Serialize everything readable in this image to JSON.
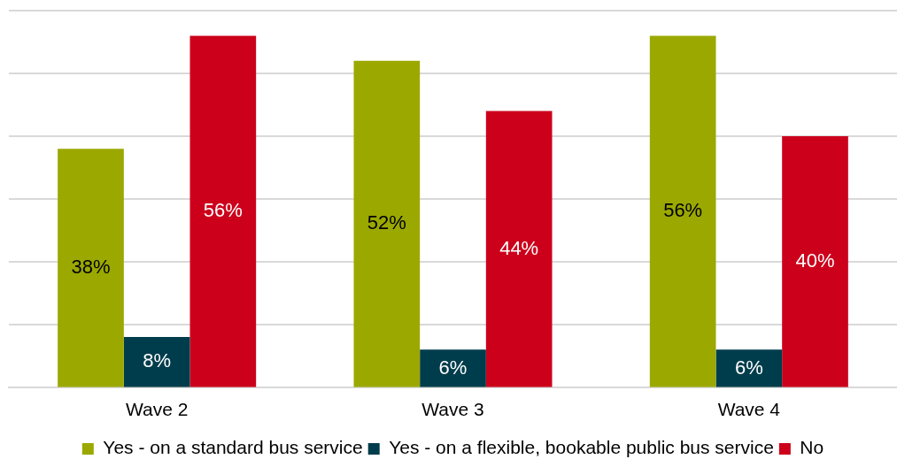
{
  "chart_data": {
    "type": "bar",
    "categories": [
      "Wave 2",
      "Wave 3",
      "Wave 4"
    ],
    "series": [
      {
        "name": "Yes - on a standard bus service",
        "color": "#9ba800",
        "values": [
          38,
          52,
          56
        ],
        "value_labels": [
          "38%",
          "52%",
          "56%"
        ]
      },
      {
        "name": "Yes - on a flexible, bookable public bus service",
        "color": "#003d4c",
        "values": [
          8,
          6,
          6
        ],
        "value_labels": [
          "8%",
          "6%",
          "6%"
        ]
      },
      {
        "name": "No",
        "color": "#cc001b",
        "values": [
          56,
          44,
          40
        ],
        "value_labels": [
          "56%",
          "44%",
          "40%"
        ]
      }
    ],
    "grid": "y",
    "tick_labels": "x",
    "legend": "bottom"
  }
}
